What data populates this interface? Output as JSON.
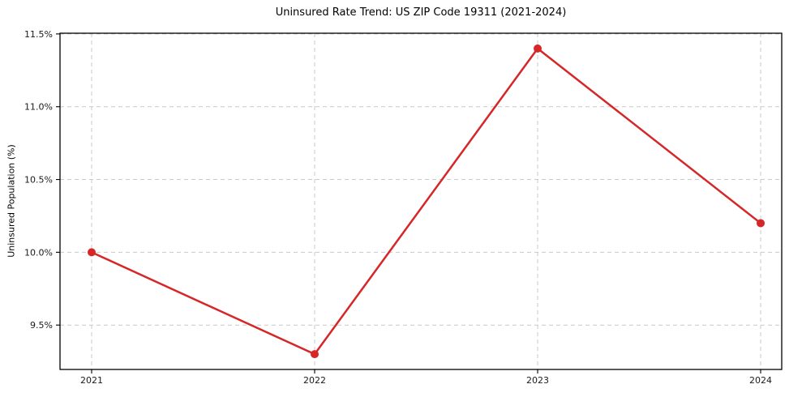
{
  "chart_data": {
    "type": "line",
    "title": "Uninsured Rate Trend: US ZIP Code 19311 (2021-2024)",
    "xlabel": "",
    "ylabel": "Uninsured Population (%)",
    "x": [
      2021,
      2022,
      2023,
      2024
    ],
    "xtick_labels": [
      "2021",
      "2022",
      "2023",
      "2024"
    ],
    "series": [
      {
        "name": "Uninsured Population (%)",
        "values": [
          10.0,
          9.3,
          11.4,
          10.2
        ]
      }
    ],
    "ylim": [
      9.195,
      11.505
    ],
    "yticks": [
      9.5,
      10.0,
      10.5,
      11.0,
      11.5
    ],
    "ytick_labels": [
      "9.5%",
      "10.0%",
      "10.5%",
      "11.0%",
      "11.5%"
    ],
    "grid": true,
    "grid_style": "dashed",
    "legend": "none",
    "marker": "circle",
    "colors": {
      "line": "#d62728",
      "marker": "#d62728",
      "grid": "#c9c9c9",
      "spine": "#000000",
      "tick_text": "#1a1a1a",
      "background": "#ffffff"
    }
  }
}
